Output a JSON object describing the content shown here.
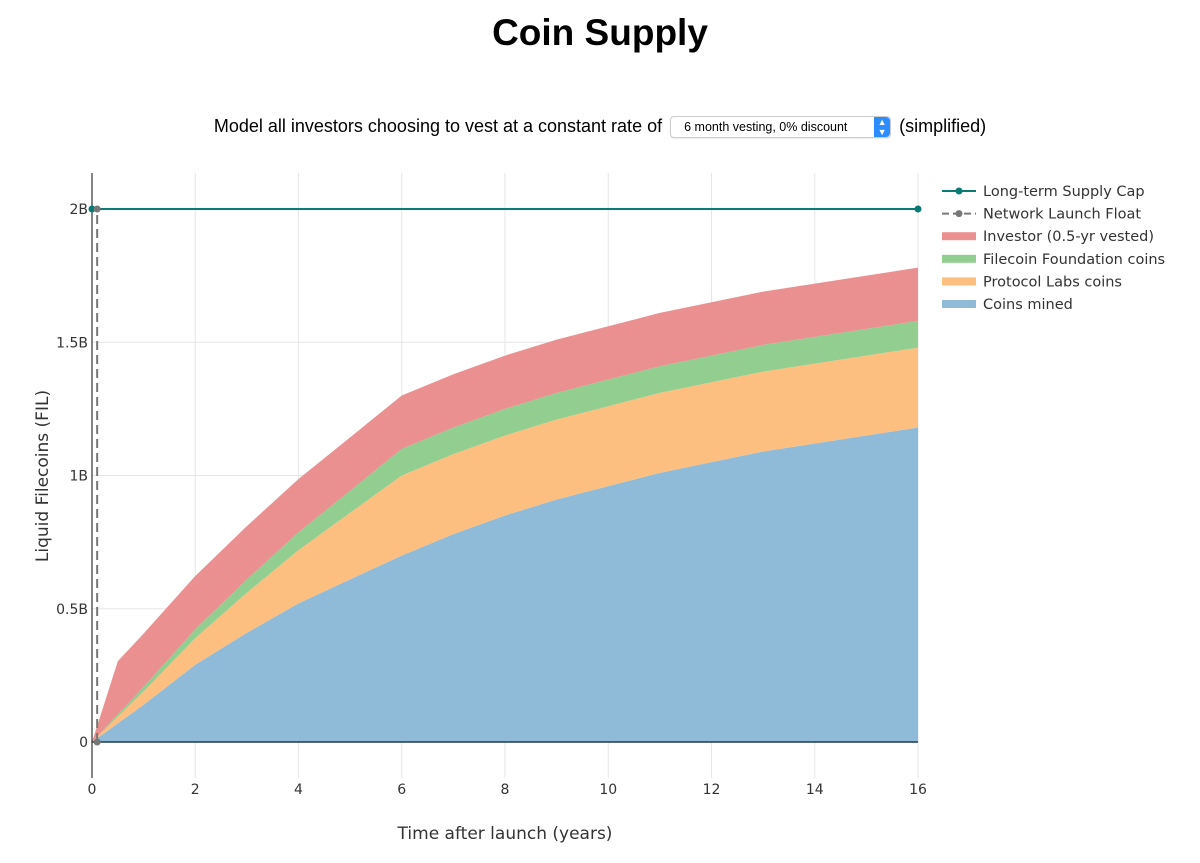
{
  "title": "Coin Supply",
  "control": {
    "prefix": "Model all investors choosing to vest at a constant rate of",
    "selected_option": "6 month vesting, 0% discount",
    "suffix": "(simplified)"
  },
  "chart_data": {
    "type": "area",
    "stacked": true,
    "xlabel": "Time after launch (years)",
    "ylabel": "Liquid Filecoins (FIL)",
    "xlim": [
      0,
      16
    ],
    "ylim": [
      -0.1,
      2.1
    ],
    "y_unit": "billions",
    "x_ticks": [
      0,
      2,
      4,
      6,
      8,
      10,
      12,
      14,
      16
    ],
    "x_tick_labels": [
      "0",
      "2",
      "4",
      "6",
      "8",
      "10",
      "12",
      "14",
      "16"
    ],
    "y_ticks": [
      0,
      0.5,
      1,
      1.5,
      2
    ],
    "y_tick_labels": [
      "0",
      "0.5B",
      "1B",
      "1.5B",
      "2B"
    ],
    "grid": true,
    "legend_position": "right",
    "x": [
      0,
      0.5,
      1,
      2,
      3,
      4,
      5,
      6,
      7,
      8,
      9,
      10,
      11,
      12,
      13,
      14,
      15,
      16
    ],
    "series": [
      {
        "name": "Coins mined",
        "color": "#8fbbd9",
        "values": [
          0,
          0.07,
          0.14,
          0.29,
          0.41,
          0.52,
          0.61,
          0.7,
          0.78,
          0.85,
          0.91,
          0.96,
          1.01,
          1.05,
          1.09,
          1.12,
          1.15,
          1.18
        ]
      },
      {
        "name": "Protocol Labs coins",
        "color": "#fdbf80",
        "values": [
          0,
          0.025,
          0.05,
          0.1,
          0.15,
          0.2,
          0.25,
          0.3,
          0.3,
          0.3,
          0.3,
          0.3,
          0.3,
          0.3,
          0.3,
          0.3,
          0.3,
          0.3
        ]
      },
      {
        "name": "Filecoin Foundation coins",
        "color": "#92ce8f",
        "values": [
          0,
          0.008,
          0.017,
          0.033,
          0.05,
          0.067,
          0.083,
          0.1,
          0.1,
          0.1,
          0.1,
          0.1,
          0.1,
          0.1,
          0.1,
          0.1,
          0.1,
          0.1
        ]
      },
      {
        "name": "Investor (0.5-yr vested)",
        "color": "#ea9090",
        "values": [
          0,
          0.2,
          0.2,
          0.2,
          0.2,
          0.2,
          0.2,
          0.2,
          0.2,
          0.2,
          0.2,
          0.2,
          0.2,
          0.2,
          0.2,
          0.2,
          0.2,
          0.2
        ]
      }
    ],
    "lines": [
      {
        "name": "Long-term Supply Cap",
        "color": "#0b7a75",
        "dash": false,
        "x": [
          0,
          16
        ],
        "y": [
          2,
          2
        ]
      },
      {
        "name": "Network Launch Float",
        "color": "#777777",
        "dash": true,
        "x": [
          0.1,
          0.1
        ],
        "y": [
          0,
          2
        ]
      }
    ],
    "legend_order": [
      "Long-term Supply Cap",
      "Network Launch Float",
      "Investor (0.5-yr vested)",
      "Filecoin Foundation coins",
      "Protocol Labs coins",
      "Coins mined"
    ]
  }
}
